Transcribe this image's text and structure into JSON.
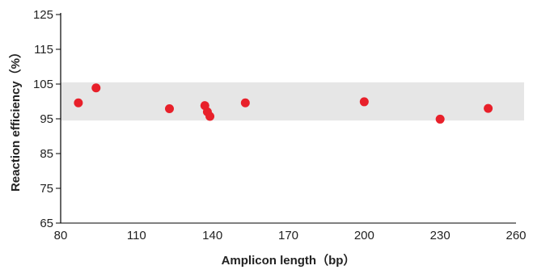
{
  "chart_data": {
    "type": "scatter",
    "title": "",
    "xlabel": "Amplicon length（bp）",
    "ylabel": "Reaction efficiency（%）",
    "xlim": [
      80,
      260
    ],
    "ylim": [
      65,
      125
    ],
    "x_ticks": [
      80,
      110,
      140,
      170,
      200,
      230,
      260
    ],
    "y_ticks": [
      65,
      75,
      85,
      95,
      105,
      115,
      125
    ],
    "x_tick_labels": [
      "80",
      "110",
      "140",
      "170",
      "200",
      "230",
      "260"
    ],
    "y_tick_labels": [
      "65",
      "75",
      "85",
      "95",
      "105",
      "115",
      "125"
    ],
    "grid": false,
    "band": {
      "y_from": 94.5,
      "y_to": 105.5,
      "color": "#e6e6e6"
    },
    "marker_color": "#e8202a",
    "points": [
      {
        "x": 87,
        "y": 99.6
      },
      {
        "x": 94,
        "y": 103.9
      },
      {
        "x": 123,
        "y": 97.9
      },
      {
        "x": 137,
        "y": 98.8
      },
      {
        "x": 138,
        "y": 97.0
      },
      {
        "x": 139,
        "y": 95.7
      },
      {
        "x": 153,
        "y": 99.6
      },
      {
        "x": 200,
        "y": 99.9
      },
      {
        "x": 230,
        "y": 94.9
      },
      {
        "x": 249,
        "y": 98.0
      }
    ]
  }
}
